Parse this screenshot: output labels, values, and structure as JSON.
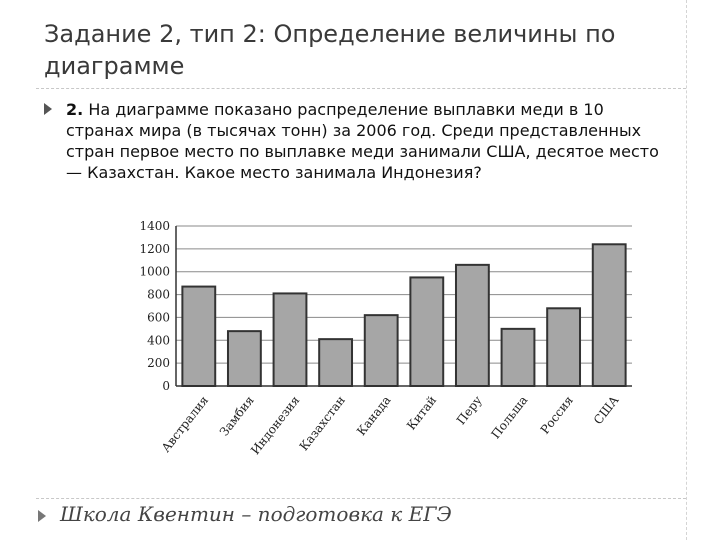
{
  "slide": {
    "title": "Задание 2, тип 2: Определение величины по диаграмме",
    "task_number": "2.",
    "task_text": "На диаграмме показано распределение выплавки меди в 10 странах мира (в тысячах тонн) за 2006 год. Среди представленных стран первое место по выплавке меди занимали США, десятое место — Казахстан. Какое место занимала Индонезия?",
    "footer": "Школа Квентин – подготовка к ЕГЭ"
  },
  "chart_data": {
    "type": "bar",
    "categories": [
      "Австралия",
      "Замбия",
      "Индонезия",
      "Казахстан",
      "Канада",
      "Китай",
      "Перу",
      "Польша",
      "Россия",
      "США"
    ],
    "values": [
      870,
      480,
      810,
      410,
      620,
      950,
      1060,
      500,
      680,
      1240
    ],
    "ylim": [
      0,
      1400
    ],
    "yticks": [
      0,
      200,
      400,
      600,
      800,
      1000,
      1200,
      1400
    ],
    "grid": true,
    "bar_color": "#a6a6a6",
    "bar_edge_color": "#333333"
  }
}
